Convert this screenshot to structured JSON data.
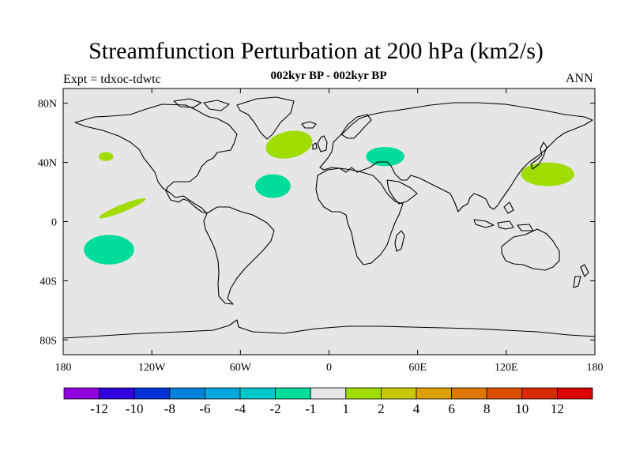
{
  "header": {
    "title": "Streamfunction Perturbation at 200 hPa (km2/s)",
    "left_string": "Expt = tdxoc-tdwtc",
    "center_string": "002kyr BP - 002kyr BP",
    "right_string": "ANN"
  },
  "map": {
    "projection": "cylindrical-equidistant",
    "background_color": "#e6e6e6",
    "lon_range": [
      -180,
      180
    ],
    "lat_range": [
      -90,
      90
    ],
    "lon_ticks": [
      {
        "lon": -180,
        "label": "180"
      },
      {
        "lon": -120,
        "label": "120W"
      },
      {
        "lon": -60,
        "label": "60W"
      },
      {
        "lon": 0,
        "label": "0"
      },
      {
        "lon": 60,
        "label": "60E"
      },
      {
        "lon": 120,
        "label": "120E"
      },
      {
        "lon": 180,
        "label": "180"
      }
    ],
    "lat_ticks": [
      {
        "lat": 80,
        "label": "80N"
      },
      {
        "lat": 40,
        "label": "40N"
      },
      {
        "lat": 0,
        "label": "0"
      },
      {
        "lat": -40,
        "label": "40S"
      },
      {
        "lat": -80,
        "label": "80S"
      }
    ],
    "anomaly_patches": [
      {
        "name": "patch-north-atlantic",
        "lon": -27,
        "lat": 52,
        "rlon": 16,
        "rlat": 9,
        "rot": -12,
        "color": "#a0dc00"
      },
      {
        "name": "patch-central-atlantic",
        "lon": -38,
        "lat": 24,
        "rlon": 12,
        "rlat": 8,
        "rot": 0,
        "color": "#00dc9a"
      },
      {
        "name": "patch-black-sea",
        "lon": 38,
        "lat": 44,
        "rlon": 13,
        "rlat": 6.5,
        "rot": 0,
        "color": "#00dc9a"
      },
      {
        "name": "patch-japan",
        "lon": 148,
        "lat": 32,
        "rlon": 18,
        "rlat": 8,
        "rot": 0,
        "color": "#a0dc00"
      },
      {
        "name": "patch-north-pacific",
        "lon": -151,
        "lat": 44,
        "rlon": 5,
        "rlat": 3,
        "rot": 0,
        "color": "#a0dc00"
      },
      {
        "name": "patch-eq-pacific",
        "lon": -140,
        "lat": 9,
        "rlon": 17,
        "rlat": 2.5,
        "rot": -22,
        "color": "#a0dc00"
      },
      {
        "name": "patch-south-pacific",
        "lon": -149,
        "lat": -19,
        "rlon": 17,
        "rlat": 10,
        "rot": 0,
        "color": "#00dc9a"
      }
    ]
  },
  "colorbar": {
    "colors": [
      "#8f00dc",
      "#3200dc",
      "#0032dc",
      "#0082dc",
      "#00a8dc",
      "#00c8c8",
      "#00dc9a",
      "#e6e6e6",
      "#a0dc00",
      "#c8c800",
      "#dca000",
      "#dc7800",
      "#dc5000",
      "#dc2800",
      "#dc0000"
    ],
    "labels": [
      "-12",
      "-10",
      "-8",
      "-6",
      "-4",
      "-2",
      "-1",
      "1",
      "2",
      "4",
      "6",
      "8",
      "10",
      "12"
    ]
  }
}
